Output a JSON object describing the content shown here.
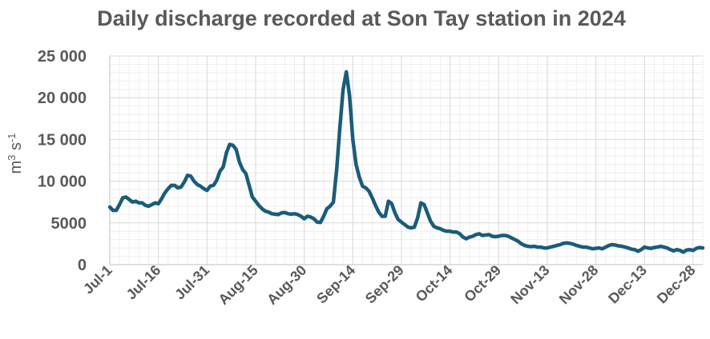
{
  "chart_data": {
    "type": "line",
    "title": "Daily discharge recorded at Son Tay station in 2024",
    "ylabel_base": "m",
    "ylabel_exp1": "3",
    "ylabel_mid": " s",
    "ylabel_exp2": "-1",
    "ylim": [
      0,
      25000
    ],
    "yticks": [
      0,
      5000,
      10000,
      15000,
      20000,
      25000
    ],
    "ytick_labels": [
      "0",
      "5000",
      "10 000",
      "15 000",
      "20 000",
      "25 000"
    ],
    "xlim": [
      0,
      183
    ],
    "xticks": [
      0,
      15,
      30,
      45,
      60,
      75,
      90,
      105,
      120,
      135,
      150,
      165,
      180
    ],
    "xtick_labels": [
      "Jul-1",
      "Jul-16",
      "Jul-31",
      "Aug-15",
      "Aug-30",
      "Sep-14",
      "Sep-29",
      "Oct-14",
      "Oct-29",
      "Nov-13",
      "Nov-28",
      "Dec-13",
      "Dec-28"
    ],
    "grid": true,
    "series": [
      {
        "color": "#1a5c7a",
        "x": [
          0,
          1,
          2,
          3,
          4,
          5,
          6,
          7,
          8,
          9,
          10,
          11,
          12,
          13,
          14,
          15,
          16,
          17,
          18,
          19,
          20,
          21,
          22,
          23,
          24,
          25,
          26,
          27,
          28,
          29,
          30,
          31,
          32,
          33,
          34,
          35,
          36,
          37,
          38,
          39,
          40,
          41,
          42,
          43,
          44,
          45,
          46,
          47,
          48,
          49,
          50,
          51,
          52,
          53,
          54,
          55,
          56,
          57,
          58,
          59,
          60,
          61,
          62,
          63,
          64,
          65,
          66,
          67,
          68,
          69,
          70,
          71,
          72,
          73,
          74,
          75,
          76,
          77,
          78,
          79,
          80,
          81,
          82,
          83,
          84,
          85,
          86,
          87,
          88,
          89,
          90,
          91,
          92,
          93,
          94,
          95,
          96,
          97,
          98,
          99,
          100,
          101,
          102,
          103,
          104,
          105,
          106,
          107,
          108,
          109,
          110,
          111,
          112,
          113,
          114,
          115,
          116,
          117,
          118,
          119,
          120,
          121,
          122,
          123,
          124,
          125,
          126,
          127,
          128,
          129,
          130,
          131,
          132,
          133,
          134,
          135,
          136,
          137,
          138,
          139,
          140,
          141,
          142,
          143,
          144,
          145,
          146,
          147,
          148,
          149,
          150,
          151,
          152,
          153,
          154,
          155,
          156,
          157,
          158,
          159,
          160,
          161,
          162,
          163,
          164,
          165,
          166,
          167,
          168,
          169,
          170,
          171,
          172,
          173,
          174,
          175,
          176,
          177,
          178,
          179,
          180,
          181,
          182,
          183
        ],
        "y": [
          6900,
          6500,
          6500,
          7200,
          8000,
          8100,
          7800,
          7500,
          7600,
          7400,
          7400,
          7100,
          7000,
          7200,
          7400,
          7300,
          7900,
          8600,
          9100,
          9500,
          9500,
          9200,
          9300,
          9900,
          10700,
          10600,
          10000,
          9600,
          9400,
          9100,
          8900,
          9400,
          9500,
          10100,
          11200,
          11700,
          13400,
          14400,
          14300,
          13800,
          12300,
          11400,
          10900,
          9500,
          8100,
          7600,
          7100,
          6700,
          6400,
          6300,
          6100,
          6050,
          6000,
          6200,
          6250,
          6100,
          6050,
          6100,
          6000,
          5800,
          5500,
          5800,
          5700,
          5500,
          5100,
          5050,
          5800,
          6700,
          7000,
          7500,
          11300,
          16400,
          21000,
          23100,
          20200,
          15000,
          12000,
          10500,
          9400,
          9200,
          8800,
          8000,
          7100,
          6300,
          5800,
          5800,
          7600,
          7300,
          6200,
          5400,
          5100,
          4800,
          4500,
          4400,
          4500,
          5600,
          7400,
          7200,
          6200,
          5200,
          4600,
          4400,
          4300,
          4100,
          4000,
          4000,
          3900,
          3900,
          3700,
          3300,
          3100,
          3300,
          3400,
          3600,
          3700,
          3500,
          3550,
          3600,
          3400,
          3350,
          3400,
          3500,
          3500,
          3400,
          3200,
          3000,
          2800,
          2500,
          2300,
          2200,
          2150,
          2200,
          2100,
          2100,
          2000,
          2000,
          2100,
          2200,
          2300,
          2400,
          2550,
          2600,
          2550,
          2450,
          2300,
          2200,
          2100,
          2100,
          2000,
          1900,
          1950,
          2000,
          1900,
          2100,
          2300,
          2400,
          2350,
          2250,
          2200,
          2100,
          2000,
          1850,
          1800,
          1600,
          1800,
          2100,
          2000,
          1950,
          2050,
          2100,
          2200,
          2100,
          2000,
          1800,
          1650,
          1800,
          1700,
          1500,
          1750,
          1800,
          1700,
          1950,
          2050,
          2000
        ]
      }
    ]
  }
}
